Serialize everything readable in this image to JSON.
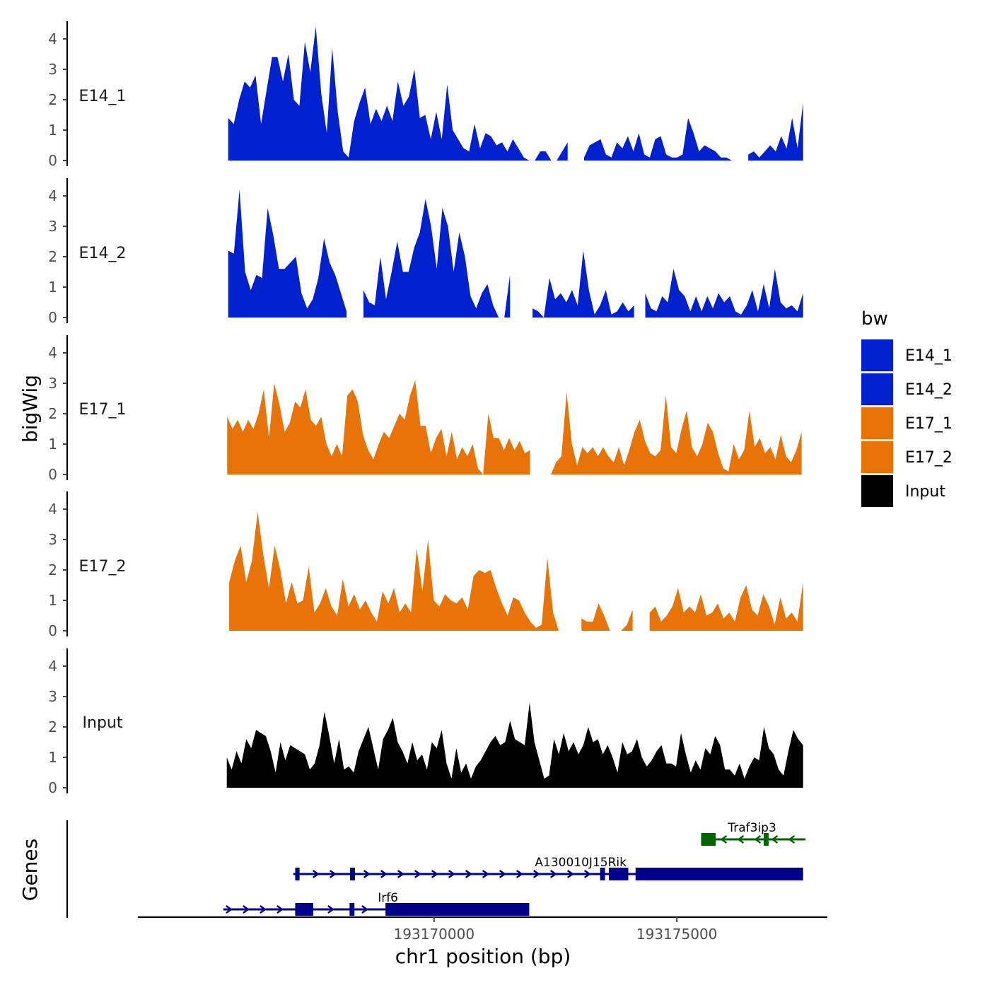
{
  "chart_data": {
    "type": "area",
    "title": "",
    "xlabel": "chr1 position (bp)",
    "ylabel": "bigWig",
    "genes_label": "Genes",
    "xlim": [
      193163900,
      193178100
    ],
    "ylim": [
      0,
      4.5
    ],
    "yticks": [
      "0",
      "1",
      "2",
      "3",
      "4"
    ],
    "xticks": [
      {
        "value": 193170000,
        "label": "193170000"
      },
      {
        "value": 193175000,
        "label": "193175000"
      }
    ],
    "legend": {
      "title": "bw",
      "position": "right",
      "items": [
        {
          "label": "E14_1",
          "color": "#0120CE"
        },
        {
          "label": "E14_2",
          "color": "#0120CE"
        },
        {
          "label": "E17_1",
          "color": "#E87306"
        },
        {
          "label": "E17_2",
          "color": "#E87306"
        },
        {
          "label": "Input",
          "color": "#000000"
        }
      ]
    },
    "series": [
      {
        "name": "E14_1",
        "color": "#0120CE",
        "x_start": 193165760,
        "x_end": 193177600,
        "values": [
          1.4,
          1.2,
          2.0,
          2.6,
          2.4,
          2.8,
          1.2,
          2.3,
          3.4,
          3.4,
          2.6,
          3.5,
          2.0,
          1.8,
          3.9,
          2.9,
          4.4,
          2.2,
          0.9,
          3.7,
          1.6,
          0.3,
          0.1,
          1.3,
          1.9,
          2.4,
          1.2,
          1.7,
          1.3,
          1.8,
          1.3,
          2.6,
          1.8,
          2.1,
          3.0,
          1.4,
          1.5,
          0.7,
          1.6,
          0.7,
          2.5,
          1.0,
          0.7,
          0.4,
          0.3,
          1.2,
          0.4,
          0.9,
          0.8,
          0.5,
          0.6,
          0.3,
          0.7,
          0.4,
          0.1,
          0.0,
          0.0,
          0.3,
          0.3,
          0.0,
          0.0,
          0.3,
          0.6,
          0.8,
          0.2,
          0.1,
          0.5,
          0.6,
          0.7,
          0.2,
          0.1,
          0.6,
          0.4,
          0.8,
          0.3,
          0.9,
          0.2,
          0.1,
          0.7,
          0.8,
          0.2,
          0.1,
          0.1,
          0.2,
          1.4,
          0.9,
          0.3,
          0.5,
          0.4,
          0.3,
          0.1,
          0.1,
          0.0,
          0.0,
          0.0,
          0.2,
          0.3,
          0.1,
          0.3,
          0.5,
          0.3,
          0.8,
          0.4,
          1.4,
          0.4,
          1.9
        ],
        "gaps": [
          [
            193172800,
            193173050
          ],
          [
            193176150,
            193176450
          ]
        ]
      },
      {
        "name": "E14_2",
        "color": "#0120CE",
        "x_start": 193165760,
        "x_end": 193177600,
        "values": [
          2.2,
          2.1,
          4.2,
          1.5,
          0.9,
          1.4,
          1.3,
          3.6,
          2.7,
          1.6,
          1.6,
          1.8,
          2.0,
          0.8,
          0.3,
          0.6,
          1.3,
          2.6,
          1.8,
          1.4,
          0.8,
          0.2,
          0.0,
          0.0,
          0.9,
          0.5,
          0.4,
          2.0,
          0.6,
          1.5,
          2.5,
          1.5,
          1.5,
          2.3,
          2.8,
          3.9,
          3.0,
          1.6,
          3.6,
          3.0,
          1.5,
          2.8,
          2.0,
          0.7,
          0.3,
          0.8,
          1.1,
          0.4,
          0.0,
          0.0,
          1.4,
          0.9,
          1.5,
          0.4,
          0.3,
          0.2,
          0.0,
          1.3,
          0.6,
          0.8,
          0.5,
          0.9,
          0.4,
          2.2,
          0.9,
          0.1,
          0.4,
          0.9,
          0.1,
          0.2,
          0.5,
          0.2,
          0.4,
          0.1,
          0.8,
          0.3,
          0.2,
          0.7,
          0.5,
          1.6,
          0.9,
          0.7,
          0.2,
          0.7,
          0.2,
          0.7,
          0.3,
          0.8,
          0.5,
          0.7,
          0.2,
          0.1,
          0.4,
          0.9,
          0.2,
          1.1,
          0.3,
          1.6,
          0.5,
          0.3,
          0.4,
          0.2,
          0.8
        ],
        "gaps": [
          [
            193168220,
            193168540
          ],
          [
            193171650,
            193171930
          ],
          [
            193174150,
            193174270
          ]
        ]
      },
      {
        "name": "E17_1",
        "color": "#E87306",
        "x_start": 193165740,
        "x_end": 193177570,
        "values": [
          1.9,
          1.5,
          1.8,
          1.4,
          1.8,
          1.5,
          2.0,
          2.8,
          1.2,
          3.0,
          2.3,
          1.4,
          1.7,
          2.4,
          2.2,
          2.8,
          1.8,
          1.6,
          1.9,
          1.0,
          0.6,
          1.0,
          0.6,
          2.6,
          2.8,
          2.4,
          1.3,
          0.8,
          0.5,
          1.0,
          1.4,
          1.2,
          1.6,
          2.0,
          1.8,
          2.6,
          3.1,
          1.6,
          1.6,
          0.7,
          1.2,
          1.5,
          0.6,
          1.4,
          0.5,
          0.9,
          0.6,
          1.0,
          0.2,
          0.0,
          2.0,
          1.2,
          1.2,
          0.8,
          1.2,
          0.8,
          1.1,
          0.7,
          0.8,
          0.3,
          0.0,
          0.0,
          0.0,
          0.4,
          0.6,
          2.7,
          1.0,
          0.3,
          0.9,
          0.7,
          0.9,
          0.6,
          0.9,
          0.6,
          0.4,
          0.9,
          0.3,
          0.8,
          1.4,
          1.8,
          1.1,
          0.7,
          0.6,
          0.8,
          2.6,
          0.9,
          0.7,
          1.5,
          2.1,
          0.9,
          0.6,
          1.0,
          1.7,
          1.4,
          0.7,
          0.2,
          0.1,
          1.0,
          0.5,
          0.8,
          2.1,
          0.9,
          1.2,
          0.7,
          0.9,
          0.5,
          1.3,
          0.6,
          0.4,
          0.8,
          1.4
        ],
        "gaps": [
          [
            193172050,
            193172220
          ]
        ]
      },
      {
        "name": "E17_2",
        "color": "#E87306",
        "x_start": 193165780,
        "x_end": 193177600,
        "values": [
          1.6,
          2.3,
          2.8,
          1.6,
          2.3,
          3.9,
          2.5,
          1.4,
          2.8,
          2.0,
          0.9,
          1.6,
          0.9,
          1.0,
          2.1,
          0.6,
          0.9,
          1.4,
          0.8,
          0.5,
          1.7,
          0.8,
          1.2,
          0.7,
          1.0,
          0.6,
          0.3,
          1.3,
          0.9,
          1.4,
          0.6,
          0.9,
          0.6,
          2.7,
          1.3,
          3.0,
          1.0,
          0.8,
          1.2,
          1.0,
          0.9,
          1.1,
          0.7,
          1.8,
          2.0,
          1.9,
          2.0,
          1.4,
          0.9,
          0.5,
          1.1,
          1.0,
          0.6,
          0.3,
          0.1,
          0.2,
          2.4,
          0.6,
          0.0,
          0.0,
          1.1,
          0.3,
          0.4,
          0.3,
          0.3,
          0.9,
          0.5,
          0.0,
          0.0,
          0.0,
          0.2,
          0.7,
          0.6,
          0.8,
          0.6,
          0.8,
          0.3,
          0.5,
          0.8,
          1.4,
          0.6,
          0.8,
          0.6,
          1.2,
          0.5,
          0.6,
          0.9,
          0.4,
          0.6,
          0.3,
          1.1,
          1.5,
          0.7,
          0.5,
          1.2,
          0.8,
          0.2,
          1.1,
          0.4,
          0.6,
          0.3,
          1.6
        ],
        "gaps": [
          [
            193172750,
            193172950
          ],
          [
            193174200,
            193174420
          ]
        ]
      },
      {
        "name": "Input",
        "color": "#000000",
        "x_start": 193165730,
        "x_end": 193177600,
        "values": [
          1.0,
          0.6,
          1.2,
          0.8,
          1.6,
          1.3,
          1.9,
          1.8,
          1.7,
          1.2,
          0.5,
          1.5,
          0.9,
          1.4,
          1.3,
          1.2,
          1.1,
          0.6,
          0.8,
          1.4,
          2.5,
          1.7,
          0.8,
          1.6,
          0.6,
          0.7,
          0.5,
          1.2,
          1.6,
          2.0,
          1.3,
          0.6,
          1.6,
          1.9,
          2.3,
          1.5,
          1.2,
          0.8,
          1.5,
          0.9,
          1.1,
          0.6,
          1.5,
          1.3,
          1.9,
          0.8,
          0.3,
          1.3,
          0.5,
          0.8,
          0.3,
          0.7,
          0.9,
          1.2,
          1.5,
          1.7,
          1.4,
          1.5,
          2.2,
          1.6,
          1.5,
          1.4,
          2.8,
          1.5,
          0.9,
          0.3,
          0.4,
          1.6,
          1.1,
          1.8,
          1.2,
          1.5,
          1.1,
          1.4,
          2.0,
          1.5,
          1.6,
          1.1,
          1.4,
          1.0,
          0.5,
          1.5,
          1.1,
          1.2,
          1.6,
          1.0,
          0.7,
          0.9,
          1.2,
          1.4,
          0.8,
          0.8,
          0.7,
          1.8,
          1.1,
          0.5,
          0.9,
          0.6,
          1.3,
          1.1,
          1.7,
          1.4,
          0.6,
          0.6,
          0.4,
          0.8,
          0.3,
          0.7,
          1.0,
          0.9,
          2.0,
          1.3,
          1.1,
          0.6,
          0.4,
          1.2,
          1.9,
          1.6,
          1.4
        ]
      }
    ],
    "genes": [
      {
        "name": "Irf6",
        "color": "#00008B",
        "strand": "+",
        "row": 3,
        "start": 193165660,
        "end": 193171960,
        "label_x": 193169050,
        "exons": [
          [
            193167140,
            193167510
          ],
          [
            193168260,
            193168360
          ],
          [
            193169000,
            193171960
          ]
        ]
      },
      {
        "name": "A130010J15Rik",
        "color": "#00008B",
        "strand": "+",
        "row": 2,
        "start": 193167100,
        "end": 193177600,
        "label_x": 193173020,
        "exons": [
          [
            193167140,
            193167230
          ],
          [
            193168270,
            193168370
          ],
          [
            193173420,
            193173520
          ],
          [
            193173600,
            193174000
          ],
          [
            193174150,
            193177600
          ]
        ]
      },
      {
        "name": "Traf3ip3",
        "color": "#006400",
        "strand": "-",
        "row": 1,
        "start": 193175500,
        "end": 193177650,
        "label_x": 193176550,
        "exons": [
          [
            193175500,
            193175800
          ],
          [
            193176790,
            193176890
          ]
        ]
      }
    ]
  }
}
